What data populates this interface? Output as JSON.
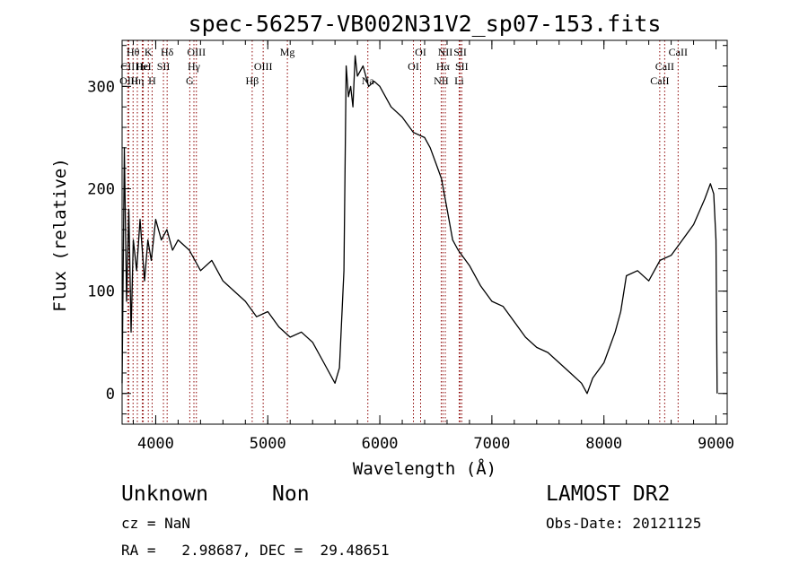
{
  "title": "spec-56257-VB002N31V2_sp07-153.fits",
  "chart_data": {
    "type": "line",
    "title": "spec-56257-VB002N31V2_sp07-153.fits",
    "xlabel": "Wavelength (Å)",
    "ylabel": "Flux (relative)",
    "xlim": [
      3700,
      9100
    ],
    "ylim": [
      -30,
      345
    ],
    "xticks": [
      "4000",
      "5000",
      "6000",
      "7000",
      "8000",
      "9000"
    ],
    "yticks": [
      "0",
      "100",
      "200",
      "300"
    ],
    "grid": false,
    "series": [
      {
        "x": [
          3700,
          3720,
          3740,
          3760,
          3780,
          3800,
          3830,
          3860,
          3900,
          3930,
          3960,
          4000,
          4050,
          4100,
          4150,
          4200,
          4300,
          4400,
          4500,
          4600,
          4700,
          4800,
          4900,
          5000,
          5100,
          5200,
          5300,
          5400,
          5500,
          5600,
          5640,
          5680,
          5700,
          5720,
          5740,
          5760,
          5780,
          5800,
          5850,
          5900,
          5950,
          6000,
          6100,
          6200,
          6300,
          6400,
          6450,
          6500,
          6550,
          6600,
          6650,
          6700,
          6800,
          6900,
          7000,
          7100,
          7200,
          7300,
          7400,
          7500,
          7600,
          7700,
          7800,
          7850,
          7900,
          8000,
          8100,
          8150,
          8200,
          8300,
          8400,
          8500,
          8600,
          8700,
          8800,
          8900,
          8950,
          8980,
          9000,
          9010
        ],
        "y": [
          10,
          240,
          90,
          180,
          60,
          150,
          120,
          170,
          110,
          150,
          130,
          170,
          150,
          160,
          140,
          150,
          140,
          120,
          130,
          110,
          100,
          90,
          75,
          80,
          65,
          55,
          60,
          50,
          30,
          10,
          25,
          120,
          320,
          290,
          300,
          280,
          330,
          310,
          320,
          300,
          305,
          300,
          280,
          270,
          255,
          250,
          240,
          225,
          210,
          180,
          150,
          140,
          125,
          105,
          90,
          85,
          70,
          55,
          45,
          40,
          30,
          20,
          10,
          0,
          15,
          30,
          60,
          80,
          115,
          120,
          110,
          130,
          135,
          150,
          165,
          190,
          205,
          195,
          150,
          0
        ]
      }
    ],
    "lines": [
      {
        "name": "Hθ",
        "x": 3798,
        "row": 0
      },
      {
        "name": "CII",
        "x": 3750,
        "row": 1
      },
      {
        "name": "OIII",
        "x": 3760,
        "row": 2
      },
      {
        "name": "Hε",
        "x": 3880,
        "row": 1
      },
      {
        "name": "K",
        "x": 3934,
        "row": 0
      },
      {
        "name": "HeI",
        "x": 3889,
        "row": 1
      },
      {
        "name": "Hη",
        "x": 3836,
        "row": 2
      },
      {
        "name": "H",
        "x": 3968,
        "row": 2
      },
      {
        "name": "SII",
        "x": 4069,
        "row": 1
      },
      {
        "name": "Hδ",
        "x": 4102,
        "row": 0
      },
      {
        "name": "OIII",
        "x": 4363,
        "row": 0
      },
      {
        "name": "Hγ",
        "x": 4341,
        "row": 1
      },
      {
        "name": "G",
        "x": 4304,
        "row": 2
      },
      {
        "name": "OIII",
        "x": 4959,
        "row": 1
      },
      {
        "name": "Hβ",
        "x": 4861,
        "row": 2
      },
      {
        "name": "Mg",
        "x": 5175,
        "row": 0
      },
      {
        "name": "Na",
        "x": 5893,
        "row": 2
      },
      {
        "name": "OI",
        "x": 6364,
        "row": 0
      },
      {
        "name": "OI",
        "x": 6300,
        "row": 1
      },
      {
        "name": "NII",
        "x": 6584,
        "row": 0
      },
      {
        "name": "Hα",
        "x": 6563,
        "row": 1
      },
      {
        "name": "NII",
        "x": 6548,
        "row": 2
      },
      {
        "name": "SII",
        "x": 6717,
        "row": 0
      },
      {
        "name": "SII",
        "x": 6731,
        "row": 1
      },
      {
        "name": "Li",
        "x": 6708,
        "row": 2
      },
      {
        "name": "CaII",
        "x": 8662,
        "row": 0
      },
      {
        "name": "CaII",
        "x": 8542,
        "row": 1
      },
      {
        "name": "CaII",
        "x": 8498,
        "row": 2
      }
    ]
  },
  "info": {
    "class_label": "Unknown",
    "subclass_label": "Non",
    "survey": "LAMOST DR2",
    "cz": "cz = NaN",
    "obs_date": "Obs-Date: 20121125",
    "coords": "RA =   2.98687, DEC =  29.48651"
  },
  "colors": {
    "spectrum": "#000000",
    "line_marker": "#8b0000",
    "axis": "#000000"
  }
}
